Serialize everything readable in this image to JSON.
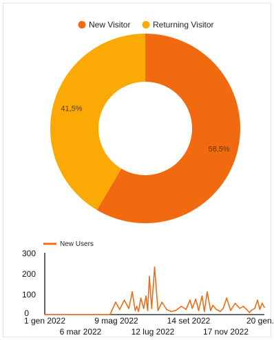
{
  "colors": {
    "new_visitor": "#f26a10",
    "returning_visitor": "#fba905",
    "new_users_line": "#ee6b16",
    "axis": "#111111"
  },
  "chart_data": [
    {
      "type": "pie",
      "subtype": "donut",
      "legend_position": "top",
      "labels": [
        "New Visitor",
        "Returning Visitor"
      ],
      "values": [
        58.5,
        41.5
      ],
      "value_labels": [
        "58,5%",
        "41,5%"
      ]
    },
    {
      "type": "line",
      "legend_position": "top-left",
      "grid": false,
      "series": [
        {
          "name": "New Users",
          "x": [
            "2022-01-01",
            "2022-04-25",
            "2022-05-05",
            "2022-05-12",
            "2022-05-20",
            "2022-05-28",
            "2022-06-03",
            "2022-06-08",
            "2022-06-11",
            "2022-06-14",
            "2022-06-18",
            "2022-06-23",
            "2022-06-27",
            "2022-06-30",
            "2022-07-03",
            "2022-07-07",
            "2022-07-12",
            "2022-07-18",
            "2022-07-25",
            "2022-08-02",
            "2022-08-10",
            "2022-08-18",
            "2022-08-28",
            "2022-09-05",
            "2022-09-12",
            "2022-09-16",
            "2022-09-22",
            "2022-09-27",
            "2022-10-03",
            "2022-10-07",
            "2022-10-12",
            "2022-10-18",
            "2022-10-22",
            "2022-10-28",
            "2022-11-04",
            "2022-11-09",
            "2022-11-15",
            "2022-11-22",
            "2022-11-30",
            "2022-12-08",
            "2022-12-14",
            "2022-12-20",
            "2022-12-25",
            "2022-12-28",
            "2023-01-03",
            "2023-01-08",
            "2023-01-12",
            "2023-01-16",
            "2023-01-20"
          ],
          "y": [
            0,
            0,
            60,
            25,
            70,
            30,
            110,
            20,
            40,
            15,
            80,
            30,
            90,
            20,
            185,
            30,
            230,
            20,
            60,
            25,
            15,
            20,
            40,
            25,
            70,
            30,
            75,
            20,
            90,
            15,
            110,
            20,
            45,
            25,
            15,
            30,
            80,
            20,
            55,
            30,
            40,
            25,
            10,
            20,
            30,
            70,
            25,
            55,
            35
          ]
        }
      ],
      "x_tick_labels": [
        "1 gen 2022",
        "6 mar 2022",
        "9 mag 2022",
        "12 lug 2022",
        "14 set 2022",
        "17 nov 2022",
        "20 gen."
      ],
      "y_tick_labels": [
        "0",
        "100",
        "200",
        "300"
      ],
      "ylim": [
        0,
        300
      ],
      "xlim": [
        "2022-01-01",
        "2023-01-20"
      ]
    }
  ]
}
